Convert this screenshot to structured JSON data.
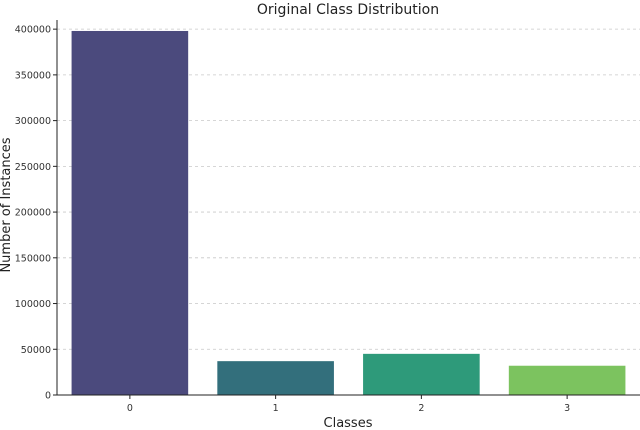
{
  "chart_data": {
    "type": "bar",
    "title": "Original Class Distribution",
    "xlabel": "Classes",
    "ylabel": "Number of Instances",
    "categories": [
      "0",
      "1",
      "2",
      "3"
    ],
    "values": [
      398000,
      37000,
      45000,
      32000
    ],
    "colors": [
      "#4b4a7d",
      "#336f7c",
      "#2e9a7a",
      "#7cc35f"
    ],
    "ylim": [
      0,
      410000
    ],
    "yticks": [
      0,
      50000,
      100000,
      150000,
      200000,
      250000,
      300000,
      350000,
      400000
    ],
    "ytick_labels": [
      "0",
      "50000",
      "100000",
      "150000",
      "200000",
      "250000",
      "300000",
      "350000",
      "400000"
    ],
    "grid": "y-dashed",
    "legend": "none"
  }
}
